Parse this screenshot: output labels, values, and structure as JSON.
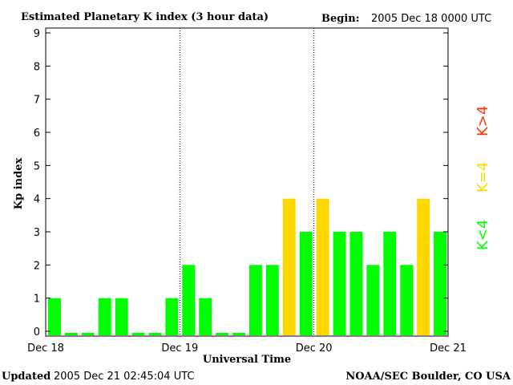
{
  "header": {
    "title": "Estimated Planetary K index (3 hour data)",
    "begin_label": "Begin:",
    "begin_value": "2005 Dec 18 0000 UTC"
  },
  "footer": {
    "updated_label": "Updated",
    "updated_value": "2005 Dec 21 02:45:04 UTC",
    "source": "NOAA/SEC Boulder, CO USA"
  },
  "legend": [
    {
      "label": "K>4",
      "color": "#ff3300"
    },
    {
      "label": "K=4",
      "color": "#ffd700"
    },
    {
      "label": "K<4",
      "color": "#00ff00"
    }
  ],
  "colors": {
    "low": "#00ff00",
    "storm": "#ffd700",
    "high": "#ff3300"
  },
  "chart_data": {
    "type": "bar",
    "title": "Estimated Planetary K index (3 hour data)",
    "xlabel": "Universal Time",
    "ylabel": "Kp index",
    "ylim": [
      0,
      9
    ],
    "yticks": [
      "0",
      "1",
      "2",
      "3",
      "4",
      "5",
      "6",
      "7",
      "8",
      "9"
    ],
    "xticks": [
      "Dec 18",
      "Dec 19",
      "Dec 20",
      "Dec 21"
    ],
    "day_separators": [
      "Dec 19",
      "Dec 20"
    ],
    "bin_hours": 3,
    "values": [
      1,
      0,
      0,
      1,
      1,
      0,
      0,
      1,
      2,
      1,
      0,
      0,
      2,
      2,
      4,
      3,
      4,
      3,
      3,
      2,
      3,
      2,
      4,
      3
    ]
  }
}
